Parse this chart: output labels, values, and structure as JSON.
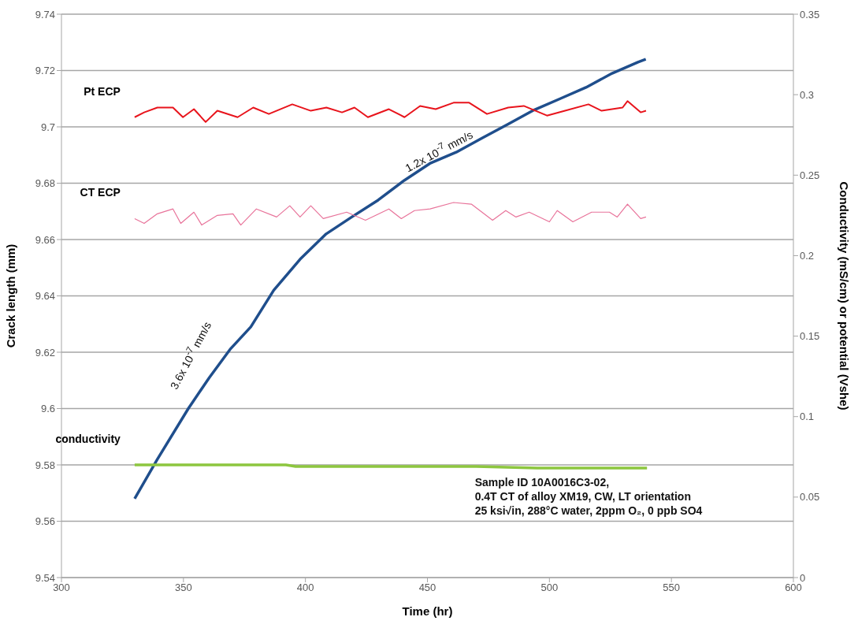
{
  "chart_data": {
    "type": "line",
    "xlabel": "Time (hr)",
    "ylabel": "Crack length (mm)",
    "y2label": "Conductivity  (mS/cm) or potential (Vshe)",
    "xlim": [
      300,
      600
    ],
    "xticks": [
      300,
      350,
      400,
      450,
      500,
      550,
      600
    ],
    "ylim": [
      9.54,
      9.74
    ],
    "yticks": [
      9.54,
      9.56,
      9.58,
      9.6,
      9.62,
      9.64,
      9.66,
      9.68,
      9.7,
      9.72,
      9.74
    ],
    "y2lim": [
      0,
      0.35
    ],
    "y2ticks": [
      0,
      0.05,
      0.1,
      0.15,
      0.2,
      0.25,
      0.3,
      0.35
    ],
    "grid": "y",
    "series": [
      {
        "color": "#1f4e8c",
        "x": [
          330,
          339.3,
          352,
          360.6,
          369.1,
          377.6,
          387,
          397.8,
          408.5,
          419,
          429.8,
          440.5,
          451,
          461.8,
          472.4,
          483.1,
          493.7,
          504.4,
          515,
          525.7,
          536.3,
          539.5
        ],
        "values": [
          9.568,
          9.582,
          9.6,
          9.611,
          9.621,
          9.629,
          9.642,
          9.653,
          9.662,
          9.668,
          9.674,
          9.681,
          9.687,
          9.691,
          9.696,
          9.701,
          9.706,
          9.71,
          9.714,
          9.719,
          9.723,
          9.724
        ]
      },
      {
        "name": "Pt ECP",
        "color": "#e8141c",
        "axis": "y2",
        "x": [
          330,
          333.9,
          339.3,
          345.7,
          349.8,
          354.3,
          359.1,
          363.9,
          372.2,
          378.6,
          385,
          394.6,
          402.2,
          408.6,
          415,
          420.1,
          425.6,
          434.2,
          440.6,
          447,
          453.4,
          460.7,
          467.1,
          474.4,
          483.1,
          489.5,
          499,
          506.4,
          516,
          521.4,
          530,
          532,
          537.4,
          539.6
        ],
        "values": [
          0.286,
          0.289,
          0.292,
          0.292,
          0.286,
          0.291,
          0.283,
          0.29,
          0.286,
          0.292,
          0.288,
          0.294,
          0.29,
          0.292,
          0.289,
          0.292,
          0.286,
          0.291,
          0.286,
          0.293,
          0.291,
          0.295,
          0.295,
          0.288,
          0.292,
          0.293,
          0.287,
          0.29,
          0.294,
          0.29,
          0.292,
          0.296,
          0.289,
          0.29
        ]
      },
      {
        "name": "CT ECP",
        "color": "#e8739a",
        "axis": "y2",
        "x": [
          330,
          333.9,
          339.3,
          345.7,
          348.9,
          354.3,
          357.5,
          363.9,
          370.3,
          373.5,
          379.9,
          388.2,
          393.6,
          397.8,
          402.2,
          407.3,
          416.9,
          424.6,
          434.2,
          439.3,
          444.7,
          451.1,
          460.7,
          468,
          476.7,
          482.1,
          486.3,
          491.7,
          500,
          503.2,
          509.6,
          517.3,
          524.6,
          527.8,
          532,
          537.4,
          539.6
        ],
        "values": [
          0.223,
          0.22,
          0.226,
          0.229,
          0.22,
          0.227,
          0.219,
          0.225,
          0.226,
          0.219,
          0.229,
          0.224,
          0.231,
          0.224,
          0.231,
          0.223,
          0.227,
          0.222,
          0.229,
          0.223,
          0.228,
          0.229,
          0.233,
          0.232,
          0.222,
          0.228,
          0.224,
          0.227,
          0.221,
          0.228,
          0.221,
          0.227,
          0.227,
          0.224,
          0.232,
          0.223,
          0.224
        ]
      },
      {
        "name": "conductivity",
        "color": "#8dc63f",
        "axis": "y2",
        "x": [
          330,
          350,
          392,
          396,
          470,
          495,
          540
        ],
        "values": [
          0.07,
          0.07,
          0.07,
          0.069,
          0.069,
          0.068,
          0.068
        ]
      }
    ],
    "annotations": [
      "3.6x 10$^{-7}$ mm/s",
      "1.2x 10$^{-7}$ mm/s",
      "Sample ID 10A0016C3-02,\n0.4T CT of alloy XM19, CW, LT orientation\n25 ksi√in, 288°C water, 2ppm O₂, 0 ppb SO4"
    ]
  }
}
